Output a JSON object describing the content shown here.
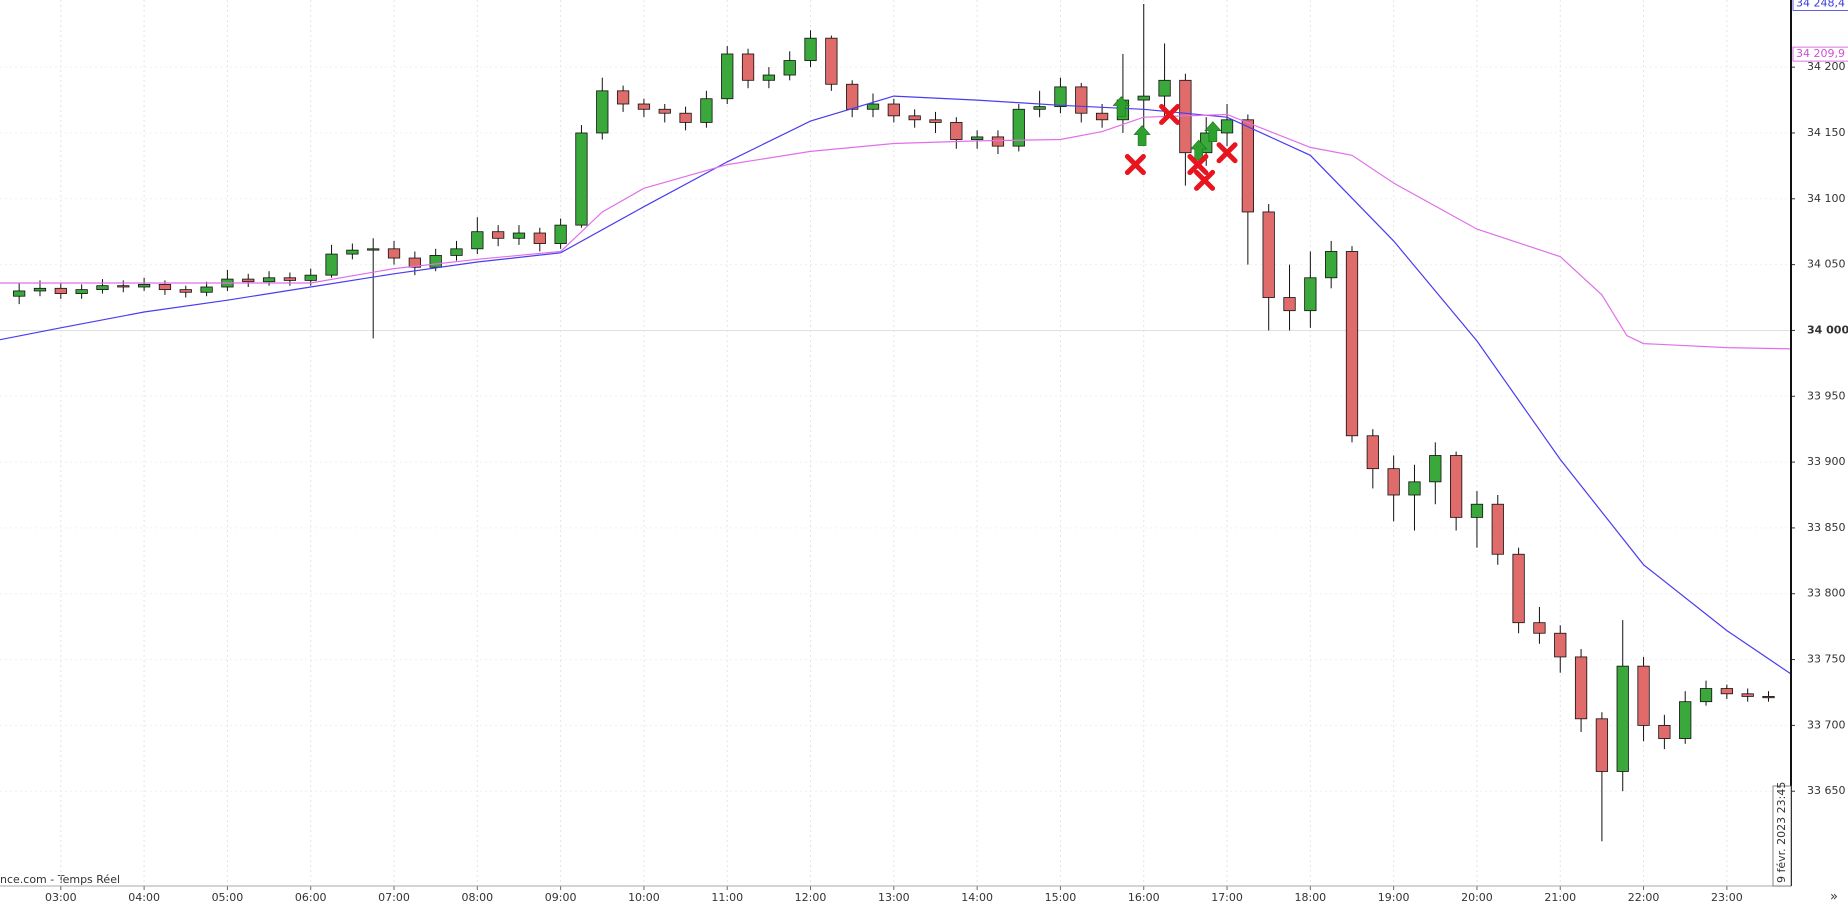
{
  "chart_data": {
    "type": "candlestick",
    "source": "nce.com - Temps Réel",
    "date_label": "9 févr. 2023 23:45",
    "more": "»",
    "xlim": [
      2.27,
      23.77
    ],
    "ylim": [
      33578,
      34251
    ],
    "xticks": [
      {
        "value": 3,
        "label": "03:00"
      },
      {
        "value": 4,
        "label": "04:00"
      },
      {
        "value": 5,
        "label": "05:00"
      },
      {
        "value": 6,
        "label": "06:00"
      },
      {
        "value": 7,
        "label": "07:00"
      },
      {
        "value": 8,
        "label": "08:00"
      },
      {
        "value": 9,
        "label": "09:00"
      },
      {
        "value": 10,
        "label": "10:00"
      },
      {
        "value": 11,
        "label": "11:00"
      },
      {
        "value": 12,
        "label": "12:00"
      },
      {
        "value": 13,
        "label": "13:00"
      },
      {
        "value": 14,
        "label": "14:00"
      },
      {
        "value": 15,
        "label": "15:00"
      },
      {
        "value": 16,
        "label": "16:00"
      },
      {
        "value": 17,
        "label": "17:00"
      },
      {
        "value": 18,
        "label": "18:00"
      },
      {
        "value": 19,
        "label": "19:00"
      },
      {
        "value": 20,
        "label": "20:00"
      },
      {
        "value": 21,
        "label": "21:00"
      },
      {
        "value": 22,
        "label": "22:00"
      },
      {
        "value": 23,
        "label": "23:00"
      }
    ],
    "yticks": [
      {
        "value": 34200,
        "label": "34 200"
      },
      {
        "value": 34150,
        "label": "34 150"
      },
      {
        "value": 34100,
        "label": "34 100"
      },
      {
        "value": 34050,
        "label": "34 050"
      },
      {
        "value": 34000,
        "label": "34 000"
      },
      {
        "value": 33950,
        "label": "33 950"
      },
      {
        "value": 33900,
        "label": "33 900"
      },
      {
        "value": 33850,
        "label": "33 850"
      },
      {
        "value": 33800,
        "label": "33 800"
      },
      {
        "value": 33750,
        "label": "33 750"
      },
      {
        "value": 33700,
        "label": "33 700"
      },
      {
        "value": 33650,
        "label": "33 650"
      }
    ],
    "bold_tick": 34000,
    "grid": true,
    "up_color": "#3aa83a",
    "down_color": "#e06b6b",
    "x": [
      2.5,
      2.75,
      3,
      3.25,
      3.5,
      3.75,
      4,
      4.25,
      4.5,
      4.75,
      5,
      5.25,
      5.5,
      5.75,
      6,
      6.25,
      6.5,
      6.75,
      7,
      7.25,
      7.5,
      7.75,
      8,
      8.25,
      8.5,
      8.75,
      9,
      9.25,
      9.5,
      9.75,
      10,
      10.25,
      10.5,
      10.75,
      11,
      11.25,
      11.5,
      11.75,
      12,
      12.25,
      12.5,
      12.75,
      13,
      13.25,
      13.5,
      13.75,
      14,
      14.25,
      14.5,
      14.75,
      15,
      15.25,
      15.5,
      15.75,
      16,
      16.25,
      16.5,
      16.75,
      17,
      17.25,
      17.5,
      17.75,
      18,
      18.25,
      18.5,
      18.75,
      19,
      19.25,
      19.5,
      19.75,
      20,
      20.25,
      20.5,
      20.75,
      21,
      21.25,
      21.5,
      21.75,
      22,
      22.25,
      22.5,
      22.75,
      23,
      23.25,
      23.5
    ],
    "open": [
      34026,
      34030,
      34032,
      34028,
      34031,
      34034,
      34033,
      34035,
      34031,
      34029,
      34033,
      34039,
      34037,
      34040,
      34038,
      34042,
      34058,
      34061,
      34062,
      34055,
      34048,
      34057,
      34062,
      34075,
      34070,
      34074,
      34066,
      34080,
      34150,
      34182,
      34172,
      34168,
      34165,
      34158,
      34176,
      34210,
      34190,
      34194,
      34205,
      34222,
      34187,
      34168,
      34172,
      34163,
      34160,
      34158,
      34145,
      34147,
      34140,
      34168,
      34170,
      34185,
      34165,
      34160,
      34175,
      34178,
      34190,
      34135,
      34150,
      34160,
      34090,
      34025,
      34015,
      34040,
      34060,
      33920,
      33895,
      33875,
      33885,
      33905,
      33858,
      33868,
      33830,
      33778,
      33770,
      33752,
      33705,
      33665,
      33745,
      33700,
      33690,
      33718,
      33728,
      33724,
      33722
    ],
    "high": [
      34036,
      34038,
      34036,
      34035,
      34039,
      34038,
      34040,
      34038,
      34034,
      34037,
      34046,
      34043,
      34045,
      34044,
      34047,
      34065,
      34066,
      34070,
      34068,
      34060,
      34062,
      34068,
      34086,
      34080,
      34080,
      34078,
      34085,
      34156,
      34192,
      34186,
      34176,
      34172,
      34170,
      34182,
      34216,
      34214,
      34200,
      34212,
      34228,
      34224,
      34190,
      34180,
      34176,
      34168,
      34166,
      34162,
      34152,
      34152,
      34172,
      34182,
      34192,
      34188,
      34172,
      34210,
      34248,
      34218,
      34195,
      34162,
      34172,
      34164,
      34096,
      34050,
      34060,
      34068,
      34064,
      33925,
      33905,
      33898,
      33915,
      33908,
      33878,
      33875,
      33835,
      33790,
      33776,
      33758,
      33710,
      33780,
      33752,
      33708,
      33726,
      33734,
      33731,
      33728,
      33726
    ],
    "low": [
      34020,
      34026,
      34024,
      34024,
      34028,
      34029,
      34030,
      34027,
      34025,
      34026,
      34030,
      34033,
      34034,
      34034,
      34034,
      34040,
      34054,
      33994,
      34050,
      34042,
      34045,
      34053,
      34058,
      34064,
      34065,
      34060,
      34062,
      34078,
      34145,
      34166,
      34162,
      34158,
      34152,
      34154,
      34172,
      34184,
      34184,
      34190,
      34200,
      34182,
      34162,
      34162,
      34158,
      34154,
      34150,
      34138,
      34138,
      34134,
      34136,
      34162,
      34165,
      34158,
      34154,
      34150,
      34140,
      34160,
      34110,
      34125,
      34140,
      34050,
      34000,
      34000,
      34002,
      34032,
      33915,
      33880,
      33855,
      33848,
      33868,
      33848,
      33835,
      33822,
      33770,
      33762,
      33740,
      33695,
      33612,
      33650,
      33688,
      33682,
      33686,
      33715,
      33720,
      33718,
      33718
    ],
    "close": [
      34030,
      34032,
      34028,
      34031,
      34034,
      34033,
      34035,
      34031,
      34029,
      34033,
      34039,
      34037,
      34040,
      34038,
      34042,
      34058,
      34061,
      34062,
      34055,
      34048,
      34057,
      34062,
      34075,
      34070,
      34074,
      34066,
      34080,
      34150,
      34182,
      34172,
      34168,
      34165,
      34158,
      34176,
      34210,
      34190,
      34194,
      34205,
      34222,
      34187,
      34168,
      34172,
      34163,
      34160,
      34158,
      34145,
      34147,
      34140,
      34168,
      34170,
      34185,
      34165,
      34160,
      34175,
      34178,
      34190,
      34135,
      34150,
      34160,
      34090,
      34025,
      34015,
      34040,
      34060,
      33920,
      33895,
      33875,
      33885,
      33905,
      33858,
      33868,
      33830,
      33778,
      33770,
      33752,
      33705,
      33665,
      33745,
      33700,
      33690,
      33718,
      33728,
      33724,
      33722,
      33721
    ],
    "lines": [
      {
        "color": "#4a3cf0",
        "x": [
          2.27,
          3,
          4,
          5,
          6,
          7,
          8,
          9,
          10,
          11,
          12,
          13,
          14,
          15,
          16,
          17,
          18,
          19,
          20,
          21,
          22,
          23,
          23.77
        ],
        "values": [
          33993,
          34002,
          34014,
          34023,
          34033,
          34043,
          34052,
          34059,
          34094,
          34128,
          34159,
          34178,
          34175,
          34171,
          34168,
          34162,
          34133,
          34068,
          33992,
          33902,
          33822,
          33772,
          33739
        ]
      },
      {
        "color": "#e070e8",
        "x": [
          2.27,
          6,
          7,
          8,
          9,
          9.5,
          10,
          11,
          12,
          13,
          14,
          15,
          15.5,
          16,
          17,
          18,
          18.5,
          19,
          20,
          21,
          21.5,
          21.8,
          22,
          23,
          23.77
        ],
        "values": [
          34036,
          34036,
          34047,
          34054,
          34060,
          34090,
          34108,
          34126,
          34136,
          34142,
          34144,
          34145,
          34151,
          34162,
          34164,
          34139,
          34133,
          34112,
          34077,
          34056,
          34027,
          33996,
          33990,
          33987,
          33986
        ]
      }
    ],
    "buy_signals": {
      "color": "#2ea02e",
      "x": [
        15.73,
        15.98,
        16.66,
        16.83
      ],
      "y": [
        34170,
        34148,
        34137,
        34151
      ]
    },
    "sell_signals": {
      "color": "#e8141e",
      "x": [
        15.9,
        16.31,
        16.65,
        16.73,
        17.0
      ],
      "y": [
        34126,
        34164,
        34126,
        34114,
        34135
      ]
    },
    "price_labels": [
      {
        "value": 34248.4,
        "label": "34 248,4",
        "color": "#3a3ae0"
      },
      {
        "value": 34209.9,
        "label": "34 209,9",
        "color": "#d050d8"
      }
    ]
  }
}
